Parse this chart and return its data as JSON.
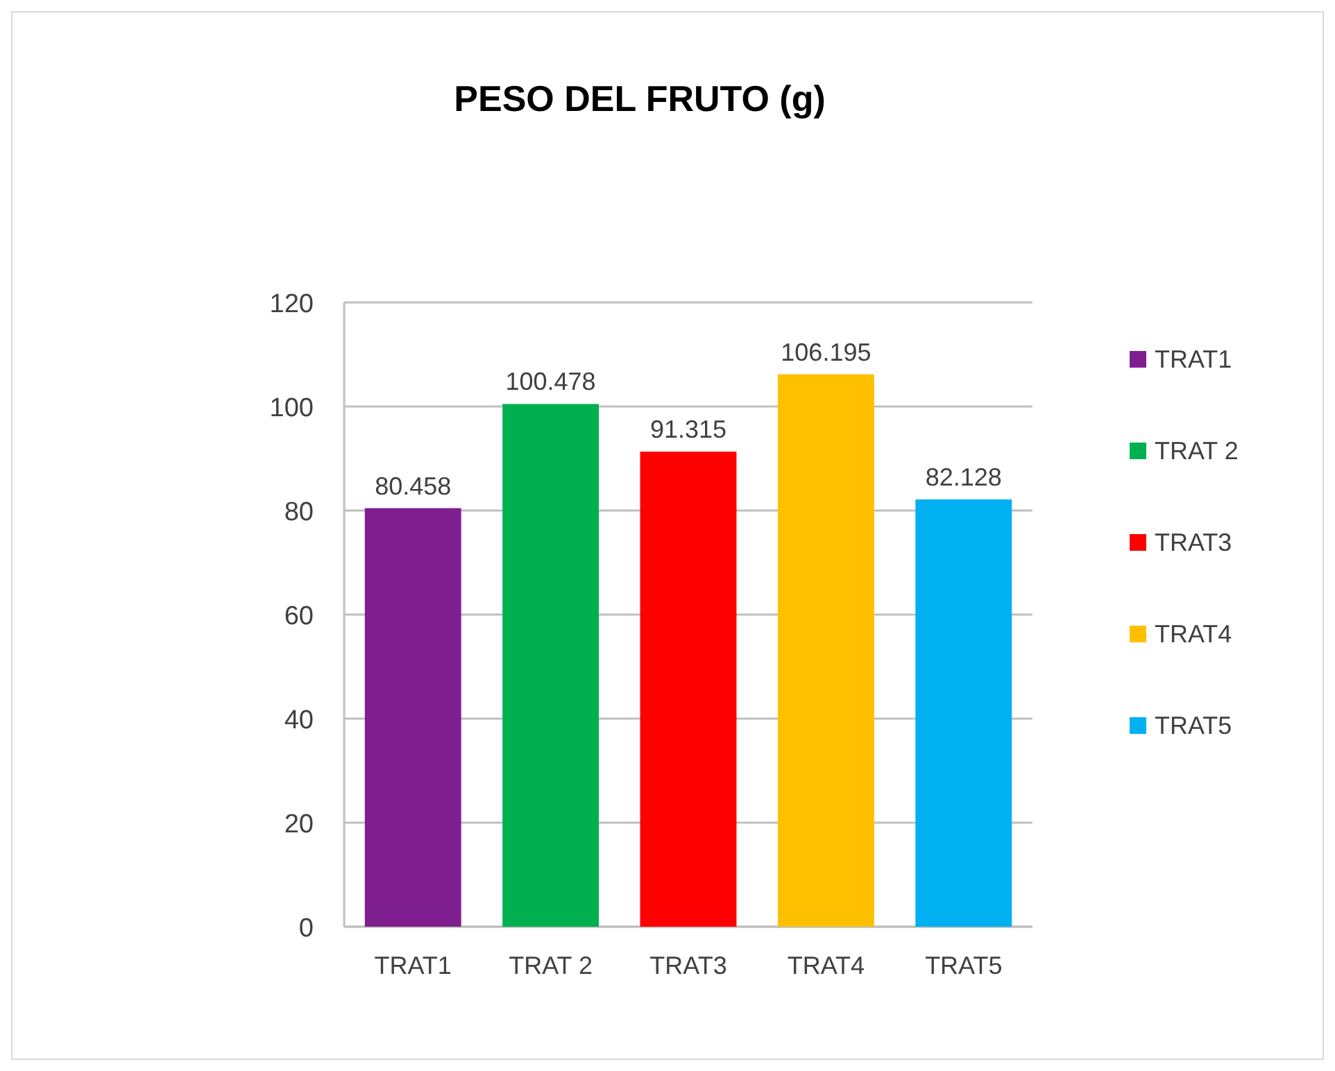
{
  "chart_data": {
    "type": "bar",
    "title": "PESO DEL FRUTO (g)",
    "categories": [
      "TRAT1",
      "TRAT 2",
      "TRAT3",
      "TRAT4",
      "TRAT5"
    ],
    "series": [
      {
        "name": "TRAT1",
        "color": "#7f1f8f",
        "values": [
          80.458,
          null,
          null,
          null,
          null
        ]
      },
      {
        "name": "TRAT 2",
        "color": "#00b050",
        "values": [
          null,
          100.478,
          null,
          null,
          null
        ]
      },
      {
        "name": "TRAT3",
        "color": "#ff0000",
        "values": [
          null,
          null,
          91.315,
          null,
          null
        ]
      },
      {
        "name": "TRAT4",
        "color": "#ffc000",
        "values": [
          null,
          null,
          null,
          106.195,
          null
        ]
      },
      {
        "name": "TRAT5",
        "color": "#00b0f0",
        "values": [
          null,
          null,
          null,
          null,
          82.128
        ]
      }
    ],
    "ylim": [
      0,
      120
    ],
    "yticks": [
      0,
      20,
      40,
      60,
      80,
      100,
      120
    ],
    "grid": "y",
    "legend": "right",
    "data_labels": true
  }
}
